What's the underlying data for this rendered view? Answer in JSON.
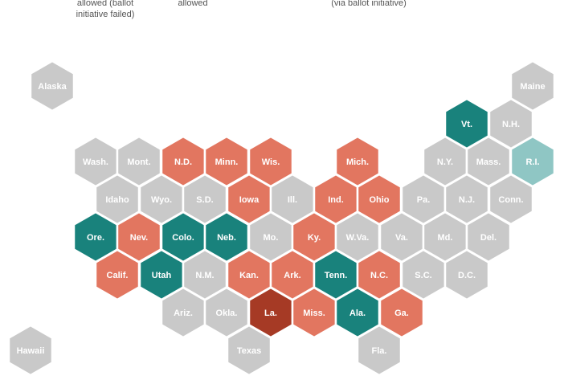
{
  "legend_fragments": [
    {
      "lines": [
        "allowed (ballot",
        "initiative failed)"
      ]
    },
    {
      "lines": [
        "allowed"
      ]
    },
    {
      "lines": [
        "(via ballot initiative)"
      ]
    }
  ],
  "colors": {
    "gray": "#c9c9c9",
    "salmon": "#e27660",
    "teal": "#19827c",
    "light_teal": "#8fc6c4",
    "dark_red": "#a63a25"
  },
  "states": [
    {
      "label": "Alaska",
      "color": "gray"
    },
    {
      "label": "Maine",
      "color": "gray"
    },
    {
      "label": "Vt.",
      "color": "teal"
    },
    {
      "label": "N.H.",
      "color": "gray"
    },
    {
      "label": "Wash.",
      "color": "gray"
    },
    {
      "label": "Mont.",
      "color": "gray"
    },
    {
      "label": "N.D.",
      "color": "salmon"
    },
    {
      "label": "Minn.",
      "color": "salmon"
    },
    {
      "label": "Wis.",
      "color": "salmon"
    },
    {
      "label": "Mich.",
      "color": "salmon"
    },
    {
      "label": "N.Y.",
      "color": "gray"
    },
    {
      "label": "Mass.",
      "color": "gray"
    },
    {
      "label": "R.I.",
      "color": "light_teal"
    },
    {
      "label": "Idaho",
      "color": "gray"
    },
    {
      "label": "Wyo.",
      "color": "gray"
    },
    {
      "label": "S.D.",
      "color": "gray"
    },
    {
      "label": "Iowa",
      "color": "salmon"
    },
    {
      "label": "Ill.",
      "color": "gray"
    },
    {
      "label": "Ind.",
      "color": "salmon"
    },
    {
      "label": "Ohio",
      "color": "salmon"
    },
    {
      "label": "Pa.",
      "color": "gray"
    },
    {
      "label": "N.J.",
      "color": "gray"
    },
    {
      "label": "Conn.",
      "color": "gray"
    },
    {
      "label": "Ore.",
      "color": "teal"
    },
    {
      "label": "Nev.",
      "color": "salmon"
    },
    {
      "label": "Colo.",
      "color": "teal"
    },
    {
      "label": "Neb.",
      "color": "teal"
    },
    {
      "label": "Mo.",
      "color": "gray"
    },
    {
      "label": "Ky.",
      "color": "salmon"
    },
    {
      "label": "W.Va.",
      "color": "gray"
    },
    {
      "label": "Va.",
      "color": "gray"
    },
    {
      "label": "Md.",
      "color": "gray"
    },
    {
      "label": "Del.",
      "color": "gray"
    },
    {
      "label": "Calif.",
      "color": "salmon"
    },
    {
      "label": "Utah",
      "color": "teal"
    },
    {
      "label": "N.M.",
      "color": "gray"
    },
    {
      "label": "Kan.",
      "color": "salmon"
    },
    {
      "label": "Ark.",
      "color": "salmon"
    },
    {
      "label": "Tenn.",
      "color": "teal"
    },
    {
      "label": "N.C.",
      "color": "salmon"
    },
    {
      "label": "S.C.",
      "color": "gray"
    },
    {
      "label": "D.C.",
      "color": "gray"
    },
    {
      "label": "Ariz.",
      "color": "gray"
    },
    {
      "label": "Okla.",
      "color": "gray"
    },
    {
      "label": "La.",
      "color": "dark_red"
    },
    {
      "label": "Miss.",
      "color": "salmon"
    },
    {
      "label": "Ala.",
      "color": "teal"
    },
    {
      "label": "Ga.",
      "color": "salmon"
    },
    {
      "label": "Hawaii",
      "color": "gray"
    },
    {
      "label": "Texas",
      "color": "gray"
    },
    {
      "label": "Fla.",
      "color": "gray"
    }
  ]
}
